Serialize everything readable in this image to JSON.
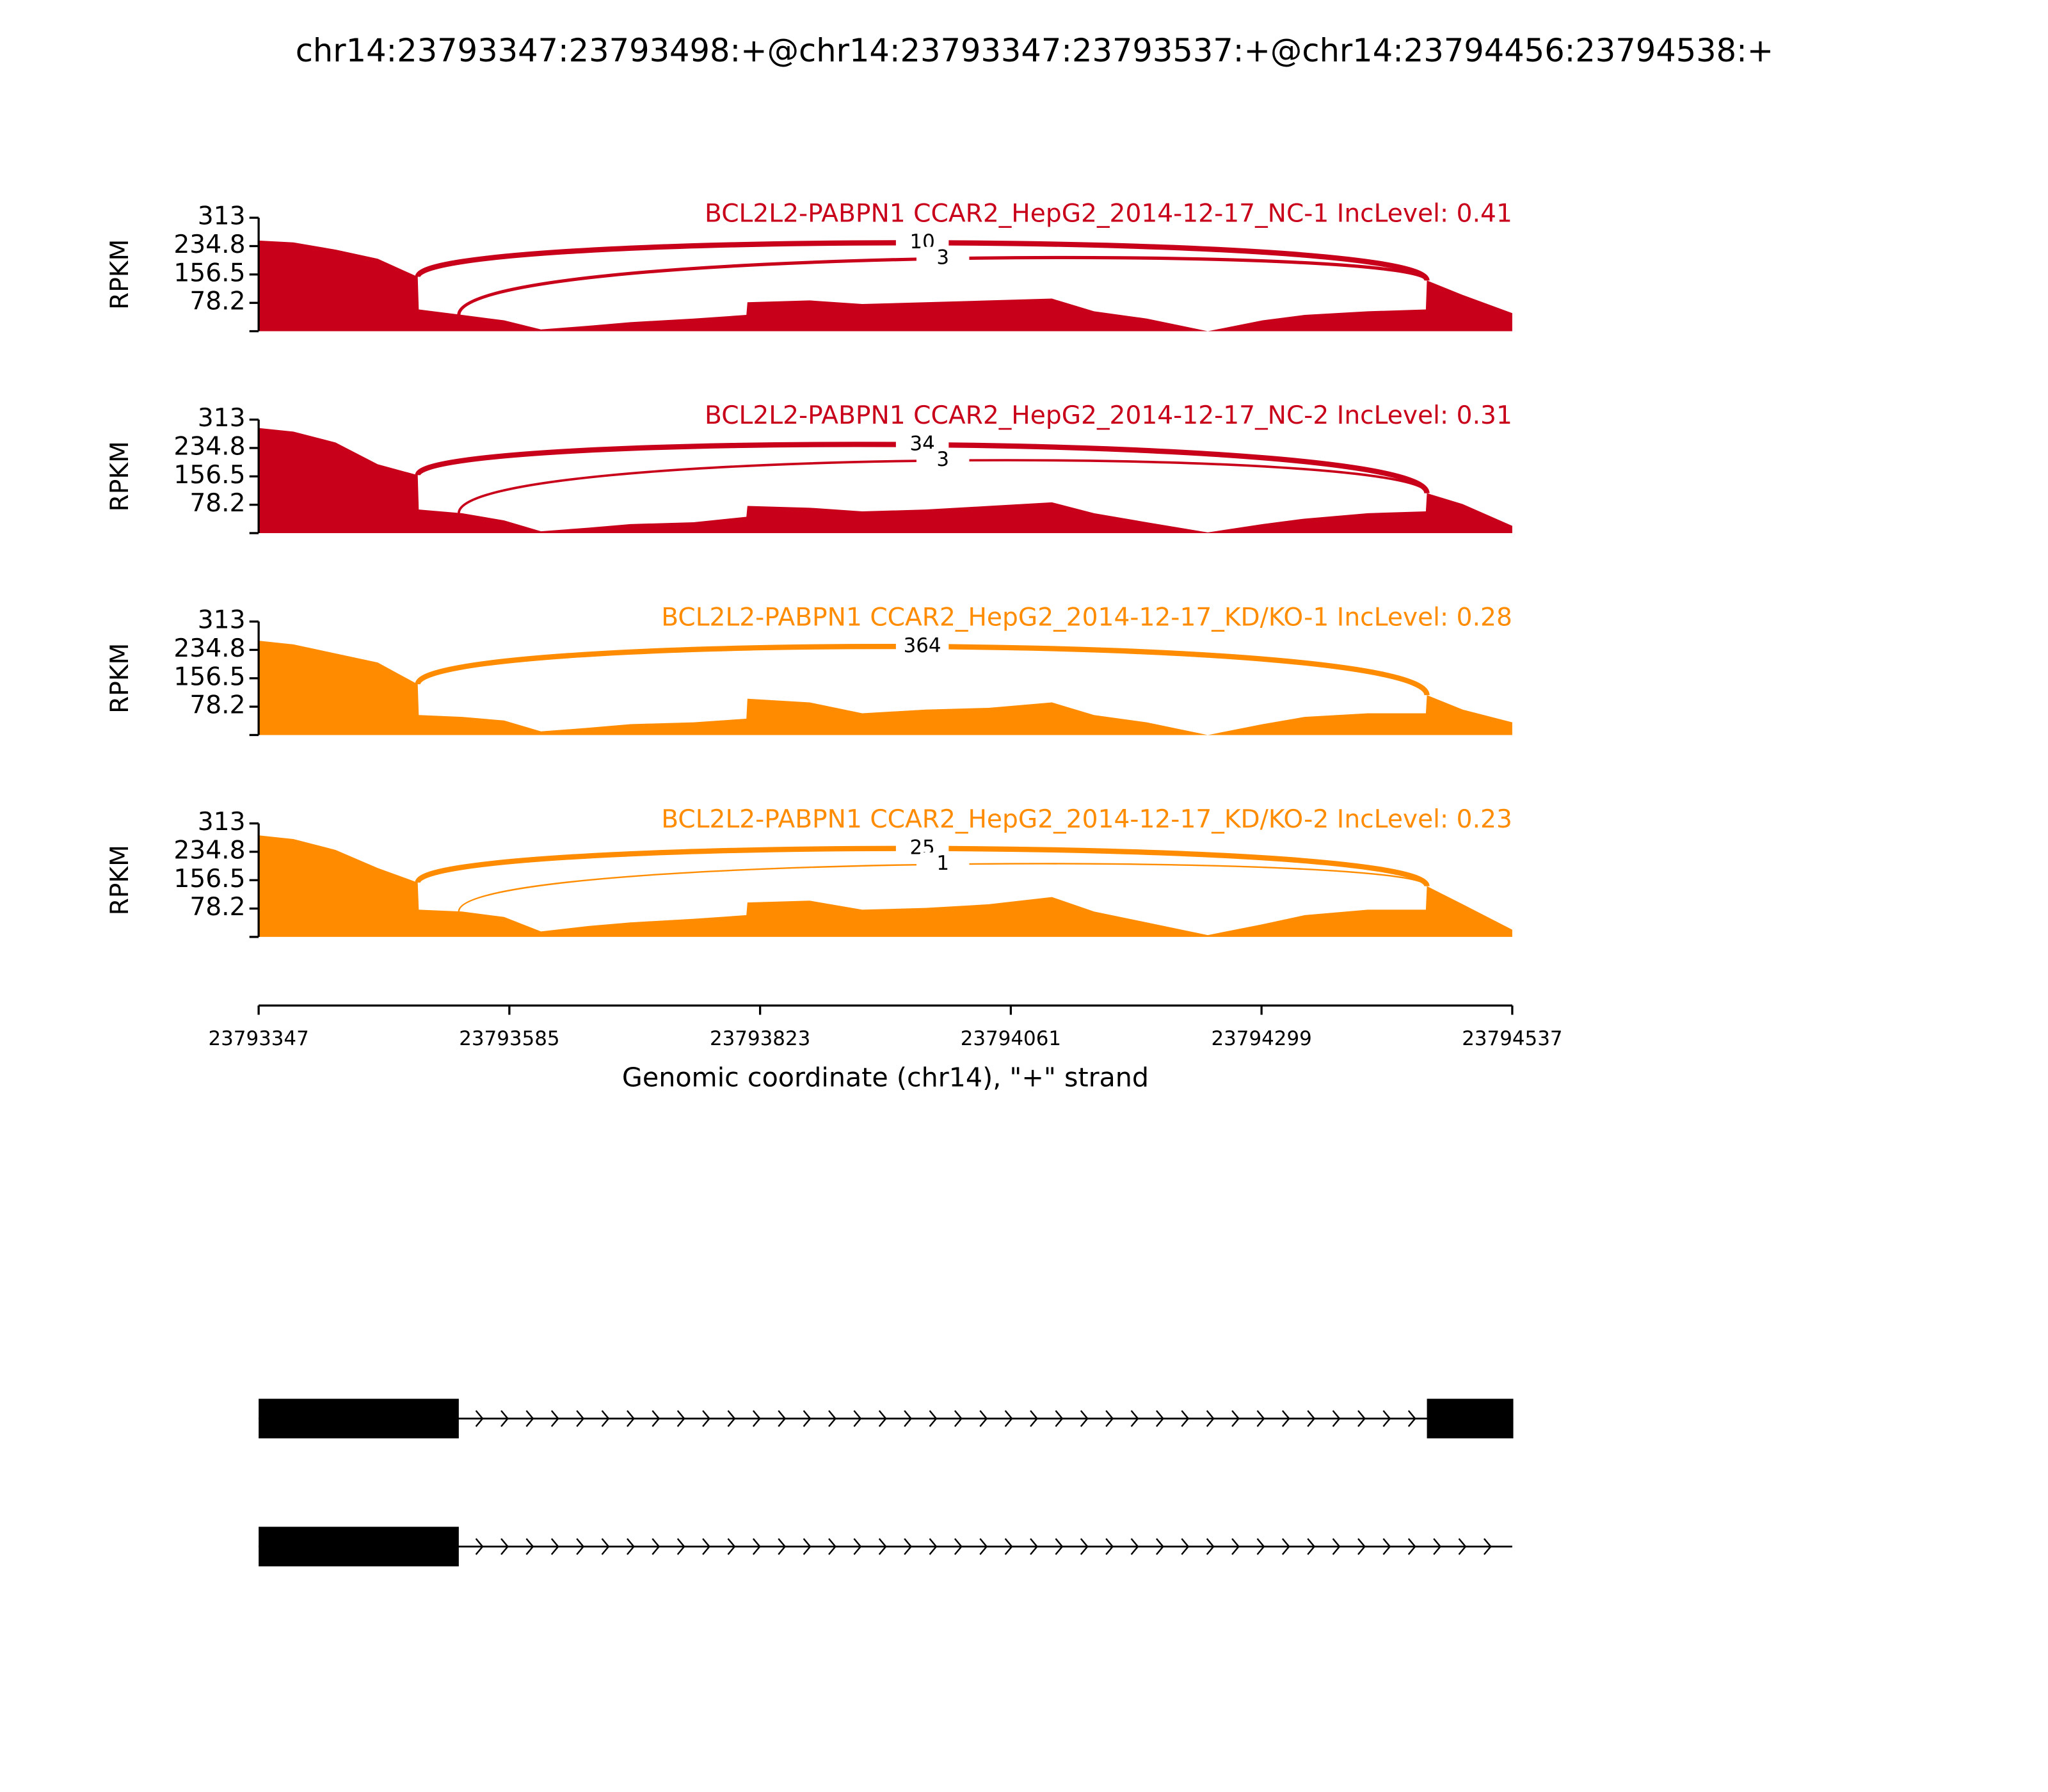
{
  "chart_data": {
    "type": "sashimi",
    "title": "chr14:23793347:23793498:+@chr14:23793347:23793537:+@chr14:23794456:23794538:+",
    "ylabel": "RPKM",
    "xlabel": "Genomic coordinate (chr14), \"+\" strand",
    "xlim": [
      23793347,
      23794537
    ],
    "xticks": [
      23793347,
      23793585,
      23793823,
      23794061,
      23794299,
      23794537
    ],
    "ylim": [
      0,
      313
    ],
    "yticks": [
      78.2,
      156.5,
      234.8,
      313
    ],
    "x": [
      23793347,
      23793380,
      23793420,
      23793460,
      23793498,
      23793499,
      23793540,
      23793580,
      23793615,
      23793660,
      23793700,
      23793760,
      23793810,
      23793811,
      23793870,
      23793920,
      23793980,
      23794040,
      23794100,
      23794140,
      23794190,
      23794248,
      23794300,
      23794340,
      23794400,
      23794455,
      23794456,
      23794490,
      23794537
    ],
    "series": [
      {
        "name": "BCL2L2-PABPN1 CCAR2_HepG2_2014-12-17_NC-1 IncLevel: 0.41",
        "color": "#c8001a",
        "values": [
          250,
          245,
          225,
          200,
          150,
          60,
          45,
          30,
          5,
          15,
          25,
          35,
          45,
          80,
          85,
          75,
          80,
          85,
          90,
          55,
          35,
          0,
          30,
          45,
          55,
          60,
          140,
          100,
          50
        ],
        "junctions": [
          {
            "start": 23793498,
            "end": 23794456,
            "count": 10
          },
          {
            "start": 23793537,
            "end": 23794456,
            "count": 3
          }
        ]
      },
      {
        "name": "BCL2L2-PABPN1 CCAR2_HepG2_2014-12-17_NC-2 IncLevel: 0.31",
        "color": "#c8001a",
        "values": [
          290,
          280,
          250,
          190,
          160,
          65,
          55,
          35,
          5,
          15,
          25,
          30,
          45,
          75,
          70,
          60,
          65,
          75,
          85,
          55,
          30,
          2,
          25,
          40,
          55,
          60,
          110,
          80,
          20
        ],
        "junctions": [
          {
            "start": 23793498,
            "end": 23794456,
            "count": 34
          },
          {
            "start": 23793537,
            "end": 23794456,
            "count": 3
          }
        ]
      },
      {
        "name": "BCL2L2-PABPN1 CCAR2_HepG2_2014-12-17_KD/KO-1 IncLevel: 0.28",
        "color": "#ff8c00",
        "values": [
          260,
          250,
          225,
          200,
          140,
          55,
          50,
          40,
          10,
          20,
          30,
          35,
          45,
          100,
          90,
          60,
          70,
          75,
          90,
          55,
          35,
          0,
          30,
          50,
          60,
          60,
          110,
          70,
          35
        ],
        "junctions": [
          {
            "start": 23793498,
            "end": 23794456,
            "count": 364
          }
        ]
      },
      {
        "name": "BCL2L2-PABPN1 CCAR2_HepG2_2014-12-17_KD/KO-2 IncLevel: 0.23",
        "color": "#ff8c00",
        "values": [
          280,
          270,
          240,
          190,
          150,
          75,
          70,
          55,
          15,
          30,
          40,
          50,
          60,
          95,
          100,
          75,
          80,
          90,
          110,
          70,
          40,
          5,
          35,
          60,
          75,
          75,
          140,
          90,
          20
        ],
        "junctions": [
          {
            "start": 23793498,
            "end": 23794456,
            "count": 25
          },
          {
            "start": 23793537,
            "end": 23794456,
            "count": 1
          }
        ]
      }
    ],
    "transcripts": [
      {
        "start": 23793347,
        "end": 23794538,
        "exons": [
          [
            23793347,
            23793537
          ],
          [
            23794456,
            23794538
          ]
        ]
      },
      {
        "start": 23793347,
        "end": 23794537,
        "exons": [
          [
            23793347,
            23793537
          ]
        ]
      }
    ]
  }
}
